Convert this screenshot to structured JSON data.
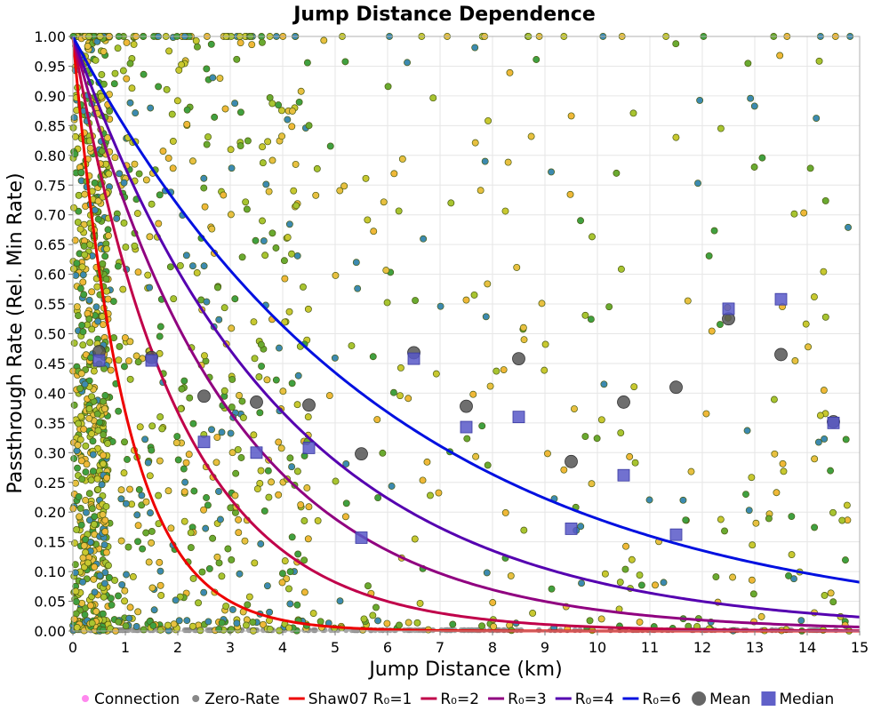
{
  "chart_data": {
    "type": "scatter",
    "title": "Jump Distance Dependence",
    "xlabel": "Jump Distance (km)",
    "ylabel": "Passthrough Rate (Rel. Min Rate)",
    "xlim": [
      0,
      15
    ],
    "ylim": [
      0,
      1
    ],
    "x_ticks": [
      "0",
      "1",
      "2",
      "3",
      "4",
      "5",
      "6",
      "7",
      "8",
      "9",
      "10",
      "11",
      "12",
      "13",
      "14",
      "15"
    ],
    "y_ticks": [
      "0.00",
      "0.05",
      "0.10",
      "0.15",
      "0.20",
      "0.25",
      "0.30",
      "0.35",
      "0.40",
      "0.45",
      "0.50",
      "0.55",
      "0.60",
      "0.65",
      "0.70",
      "0.75",
      "0.80",
      "0.85",
      "0.90",
      "0.95",
      "1.00"
    ],
    "grid": true,
    "legend_position": "bottom",
    "legend": [
      {
        "label": "Connection",
        "kind": "dot",
        "color": "#ff88ee"
      },
      {
        "label": "Zero-Rate",
        "kind": "dot",
        "color": "#888888"
      },
      {
        "label": "Shaw07 R₀=1",
        "kind": "line",
        "color": "#ee0000"
      },
      {
        "label": "R₀=2",
        "kind": "line",
        "color": "#c0004a"
      },
      {
        "label": "R₀=3",
        "kind": "line",
        "color": "#900080"
      },
      {
        "label": "R₀=4",
        "kind": "line",
        "color": "#5500b0"
      },
      {
        "label": "R₀=6",
        "kind": "line",
        "color": "#0010e0"
      },
      {
        "label": "Mean",
        "kind": "circle",
        "color": "#555555"
      },
      {
        "label": "Median",
        "kind": "square",
        "color": "#6060c8"
      }
    ],
    "curves": [
      {
        "name": "Shaw07 R₀=1",
        "R0": 1,
        "color": "#ee0000"
      },
      {
        "name": "R₀=2",
        "R0": 2,
        "color": "#c0004a"
      },
      {
        "name": "R₀=3",
        "R0": 3,
        "color": "#900080"
      },
      {
        "name": "R₀=4",
        "R0": 4,
        "color": "#5500b0"
      },
      {
        "name": "R₀=6",
        "R0": 6,
        "color": "#0010e0"
      }
    ],
    "mean": {
      "x": [
        0.5,
        1.5,
        2.5,
        3.5,
        4.5,
        5.5,
        6.5,
        7.5,
        8.5,
        9.5,
        10.5,
        11.5,
        12.5,
        13.5,
        14.5
      ],
      "y": [
        0.47,
        0.46,
        0.395,
        0.385,
        0.38,
        0.298,
        0.468,
        0.378,
        0.458,
        0.285,
        0.385,
        0.41,
        0.525,
        0.465,
        0.352
      ]
    },
    "median": {
      "x": [
        0.5,
        1.5,
        2.5,
        3.5,
        4.5,
        5.5,
        6.5,
        7.5,
        8.5,
        9.5,
        10.5,
        11.5,
        12.5,
        13.5,
        14.5
      ],
      "y": [
        0.455,
        0.455,
        0.318,
        0.3,
        0.308,
        0.157,
        0.458,
        0.343,
        0.36,
        0.172,
        0.262,
        0.162,
        0.542,
        0.558,
        0.35
      ]
    },
    "connections": {
      "colors": [
        "#a8c430",
        "#c8c830",
        "#e8c040",
        "#f0b838",
        "#6aaa30",
        "#40a040",
        "#3c8ab0"
      ],
      "count": 1500
    },
    "zero_rate": {
      "y": 0,
      "x_range": [
        0,
        14.8
      ]
    }
  }
}
